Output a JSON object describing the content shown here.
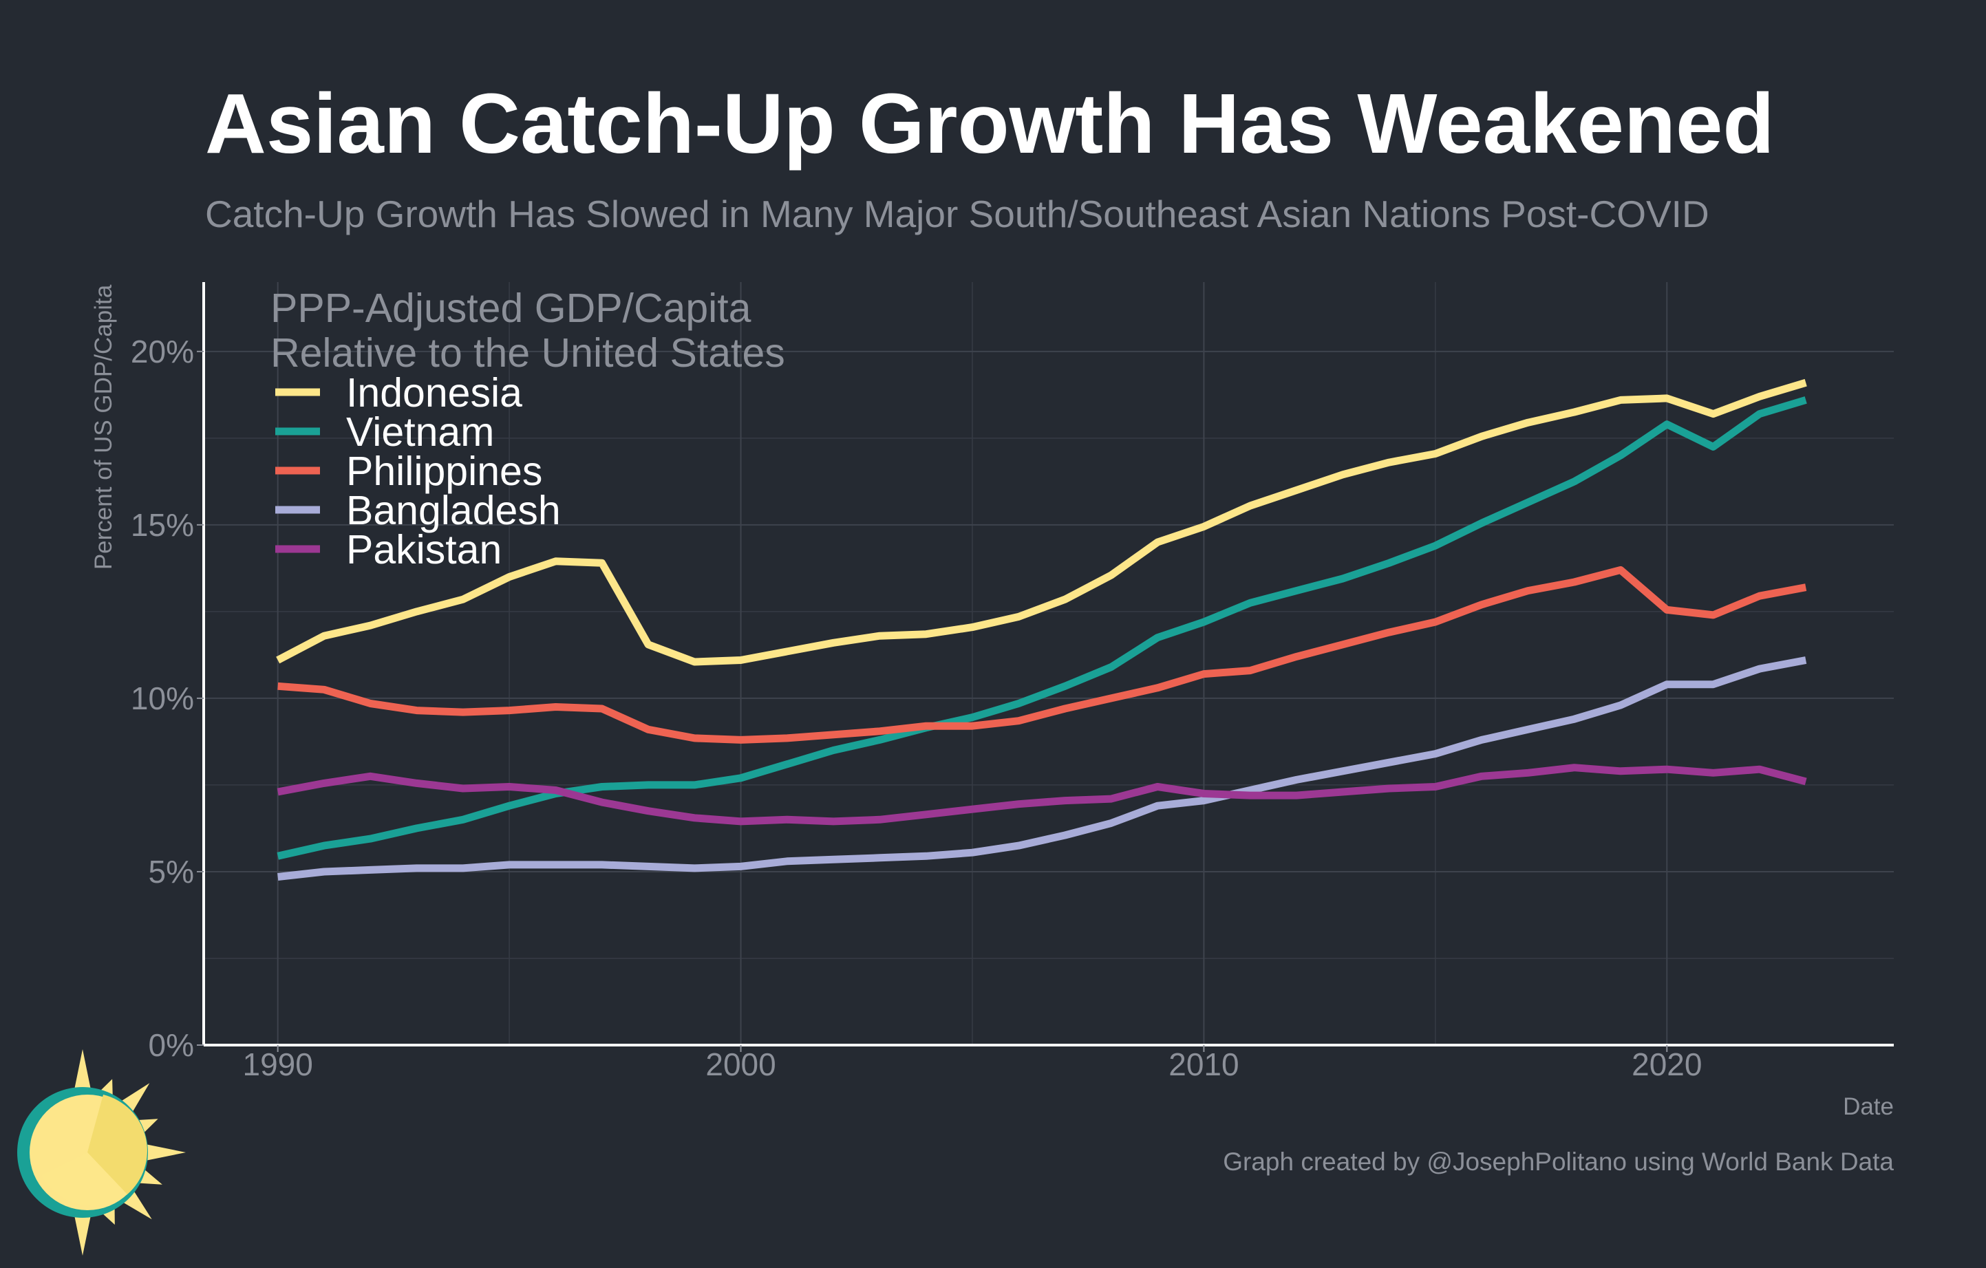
{
  "chart_data": {
    "type": "line",
    "title": "Asian Catch-Up Growth Has Weakened",
    "subtitle": "Catch-Up Growth Has Slowed in Many Major South/Southeast Asian Nations Post-COVID",
    "xlabel": "Date",
    "ylabel": "Percent of US GDP/Capita",
    "legend_title": [
      "PPP-Adjusted GDP/Capita",
      "Relative to the United States"
    ],
    "legend_position": "top-left",
    "caption": "Graph created by @JosephPolitano using World Bank Data",
    "xlim": [
      1988.4,
      2024.9
    ],
    "ylim": [
      0,
      22
    ],
    "x_ticks": [
      1990,
      2000,
      2010,
      2020
    ],
    "x_tick_labels": [
      "1990",
      "2000",
      "2010",
      "2020"
    ],
    "y_ticks": [
      0,
      5,
      10,
      15,
      20
    ],
    "y_tick_labels": [
      "0%",
      "5%",
      "10%",
      "15%",
      "20%"
    ],
    "grid": true,
    "x": [
      1990,
      1991,
      1992,
      1993,
      1994,
      1995,
      1996,
      1997,
      1998,
      1999,
      2000,
      2001,
      2002,
      2003,
      2004,
      2005,
      2006,
      2007,
      2008,
      2009,
      2010,
      2011,
      2012,
      2013,
      2014,
      2015,
      2016,
      2017,
      2018,
      2019,
      2020,
      2021,
      2022,
      2023
    ],
    "series": [
      {
        "name": "Indonesia",
        "color": "#fde68a",
        "values": [
          11.1,
          11.8,
          12.1,
          12.5,
          12.85,
          13.5,
          13.95,
          13.9,
          11.55,
          11.05,
          11.1,
          11.35,
          11.6,
          11.8,
          11.85,
          12.05,
          12.35,
          12.85,
          13.55,
          14.5,
          14.95,
          15.55,
          16.0,
          16.45,
          16.8,
          17.05,
          17.55,
          17.95,
          18.25,
          18.6,
          18.65,
          18.2,
          18.7,
          19.1
        ]
      },
      {
        "name": "Vietnam",
        "color": "#1aa196",
        "values": [
          5.45,
          5.75,
          5.95,
          6.25,
          6.5,
          6.9,
          7.25,
          7.45,
          7.5,
          7.5,
          7.7,
          8.1,
          8.5,
          8.8,
          9.15,
          9.45,
          9.85,
          10.35,
          10.9,
          11.75,
          12.2,
          12.75,
          13.1,
          13.45,
          13.9,
          14.4,
          15.05,
          15.65,
          16.25,
          17.0,
          17.9,
          17.25,
          18.2,
          18.6
        ]
      },
      {
        "name": "Philippines",
        "color": "#ee6352",
        "values": [
          10.35,
          10.25,
          9.85,
          9.65,
          9.6,
          9.65,
          9.75,
          9.7,
          9.1,
          8.85,
          8.8,
          8.85,
          8.95,
          9.05,
          9.2,
          9.2,
          9.35,
          9.7,
          10.0,
          10.3,
          10.7,
          10.8,
          11.2,
          11.55,
          11.9,
          12.2,
          12.7,
          13.1,
          13.35,
          13.7,
          12.55,
          12.4,
          12.95,
          13.2
        ]
      },
      {
        "name": "Bangladesh",
        "color": "#a8acd8",
        "values": [
          4.85,
          5.0,
          5.05,
          5.1,
          5.1,
          5.2,
          5.2,
          5.2,
          5.15,
          5.1,
          5.15,
          5.3,
          5.35,
          5.4,
          5.45,
          5.55,
          5.75,
          6.05,
          6.4,
          6.9,
          7.05,
          7.35,
          7.65,
          7.9,
          8.15,
          8.4,
          8.8,
          9.1,
          9.4,
          9.8,
          10.4,
          10.4,
          10.85,
          11.1
        ]
      },
      {
        "name": "Pakistan",
        "color": "#9c3893",
        "values": [
          7.3,
          7.55,
          7.75,
          7.55,
          7.4,
          7.45,
          7.35,
          7.0,
          6.75,
          6.55,
          6.45,
          6.5,
          6.45,
          6.5,
          6.65,
          6.8,
          6.95,
          7.05,
          7.1,
          7.45,
          7.25,
          7.2,
          7.2,
          7.3,
          7.4,
          7.45,
          7.75,
          7.85,
          8.0,
          7.9,
          7.95,
          7.85,
          7.95,
          7.6
        ]
      }
    ]
  },
  "logo": {
    "name": "sun-logo",
    "colors": {
      "ring": "#1aa196",
      "sun": "#fde68a",
      "sun_shade": "#f3dc6e",
      "rays": "#fde68a"
    }
  }
}
